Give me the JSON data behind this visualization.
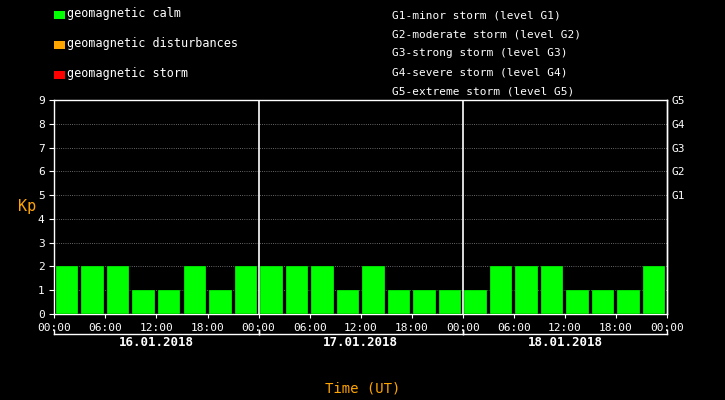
{
  "background_color": "#000000",
  "plot_bg_color": "#000000",
  "bar_color_calm": "#00ff00",
  "bar_color_disturbances": "#ffa500",
  "bar_color_storm": "#ff0000",
  "text_color": "#ffffff",
  "orange_color": "#ffa500",
  "days": [
    "16.01.2018",
    "17.01.2018",
    "18.01.2018"
  ],
  "kp_day1": [
    2,
    2,
    2,
    1,
    1,
    2,
    1,
    2
  ],
  "kp_day2": [
    2,
    2,
    2,
    1,
    2,
    1,
    1,
    1
  ],
  "kp_day3": [
    1,
    2,
    2,
    2,
    1,
    1,
    1,
    2
  ],
  "ylabel": "Kp",
  "xlabel": "Time (UT)",
  "ylim": [
    0,
    9
  ],
  "yticks": [
    0,
    1,
    2,
    3,
    4,
    5,
    6,
    7,
    8,
    9
  ],
  "right_labels": [
    [
      "G1",
      5.0
    ],
    [
      "G2",
      6.0
    ],
    [
      "G3",
      7.0
    ],
    [
      "G4",
      8.0
    ],
    [
      "G5",
      9.0
    ]
  ],
  "legend_items": [
    {
      "label": "geomagnetic calm",
      "color": "#00ff00"
    },
    {
      "label": "geomagnetic disturbances",
      "color": "#ffa500"
    },
    {
      "label": "geomagnetic storm",
      "color": "#ff0000"
    }
  ],
  "right_text": [
    "G1-minor storm (level G1)",
    "G2-moderate storm (level G2)",
    "G3-strong storm (level G3)",
    "G4-severe storm (level G4)",
    "G5-extreme storm (level G5)"
  ],
  "calm_max": 3,
  "disturb_min": 4,
  "storm_min": 5
}
